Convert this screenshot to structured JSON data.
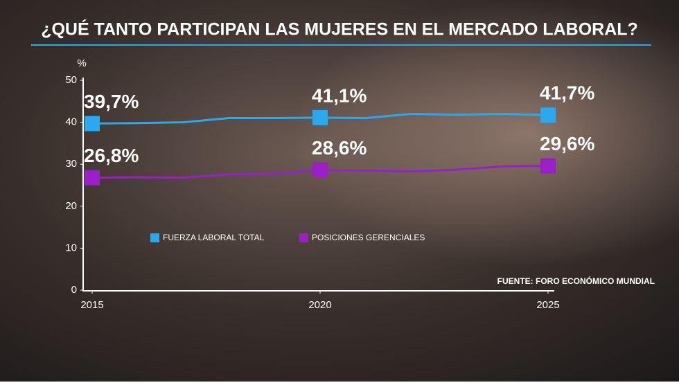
{
  "chart_data": {
    "type": "line",
    "title": "¿QUÉ TANTO PARTICIPAN LAS MUJERES EN EL MERCADO LABORAL?",
    "y_label": "%",
    "source": "FUENTE: FORO ECONÓMICO MUNDIAL",
    "x": [
      2015,
      2016,
      2017,
      2018,
      2019,
      2020,
      2021,
      2022,
      2023,
      2024,
      2025
    ],
    "xlim": [
      2015,
      2025
    ],
    "xticks": [
      2015,
      2020,
      2025
    ],
    "ylim": [
      0,
      50
    ],
    "yticks": [
      0,
      10,
      20,
      30,
      40,
      50
    ],
    "grid": false,
    "series": [
      {
        "name": "FUERZA LABORAL TOTAL",
        "color": "#2aa8f0",
        "values": [
          39.7,
          39.8,
          40.0,
          41.0,
          41.0,
          41.1,
          41.0,
          42.0,
          41.8,
          42.0,
          41.7
        ],
        "value_labels": [
          "39,7%",
          null,
          null,
          null,
          null,
          "41,1%",
          null,
          null,
          null,
          null,
          "41,7%"
        ]
      },
      {
        "name": "POSICIONES GERENCIALES",
        "color": "#9b1fc9",
        "values": [
          26.8,
          26.9,
          26.8,
          27.6,
          27.8,
          28.6,
          28.5,
          28.3,
          28.7,
          29.5,
          29.6
        ],
        "value_labels": [
          "26,8%",
          null,
          null,
          null,
          null,
          "28,6%",
          null,
          null,
          null,
          null,
          "29,6%"
        ]
      }
    ]
  }
}
